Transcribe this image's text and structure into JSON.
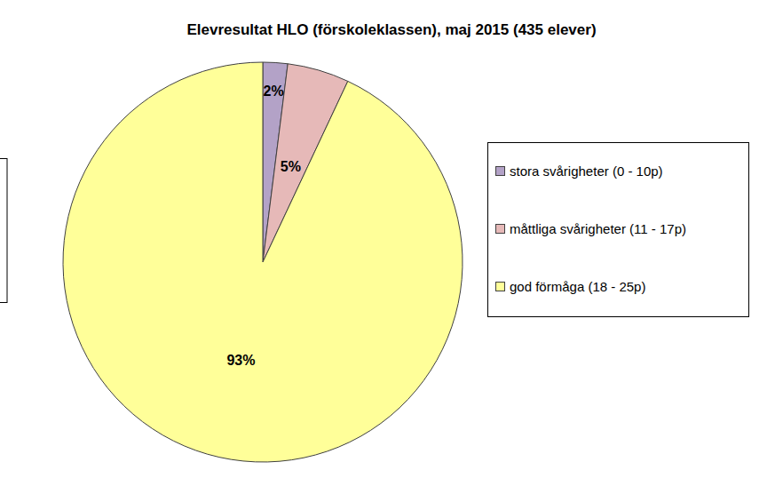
{
  "chart_data": {
    "type": "pie",
    "title": "Elevresultat HLO (förskoleklassen), maj 2015 (435 elever)",
    "categories": [
      "stora svårigheter (0 - 10p)",
      "måttliga svårigheter (11 - 17p)",
      "god förmåga (18 - 25p)"
    ],
    "values": [
      2,
      5,
      93
    ],
    "value_labels": [
      "2%",
      "5%",
      "93%"
    ],
    "colors": [
      "#b3a2c7",
      "#e6b9b8",
      "#ffff99"
    ],
    "data_labels": true,
    "legend": "right"
  }
}
